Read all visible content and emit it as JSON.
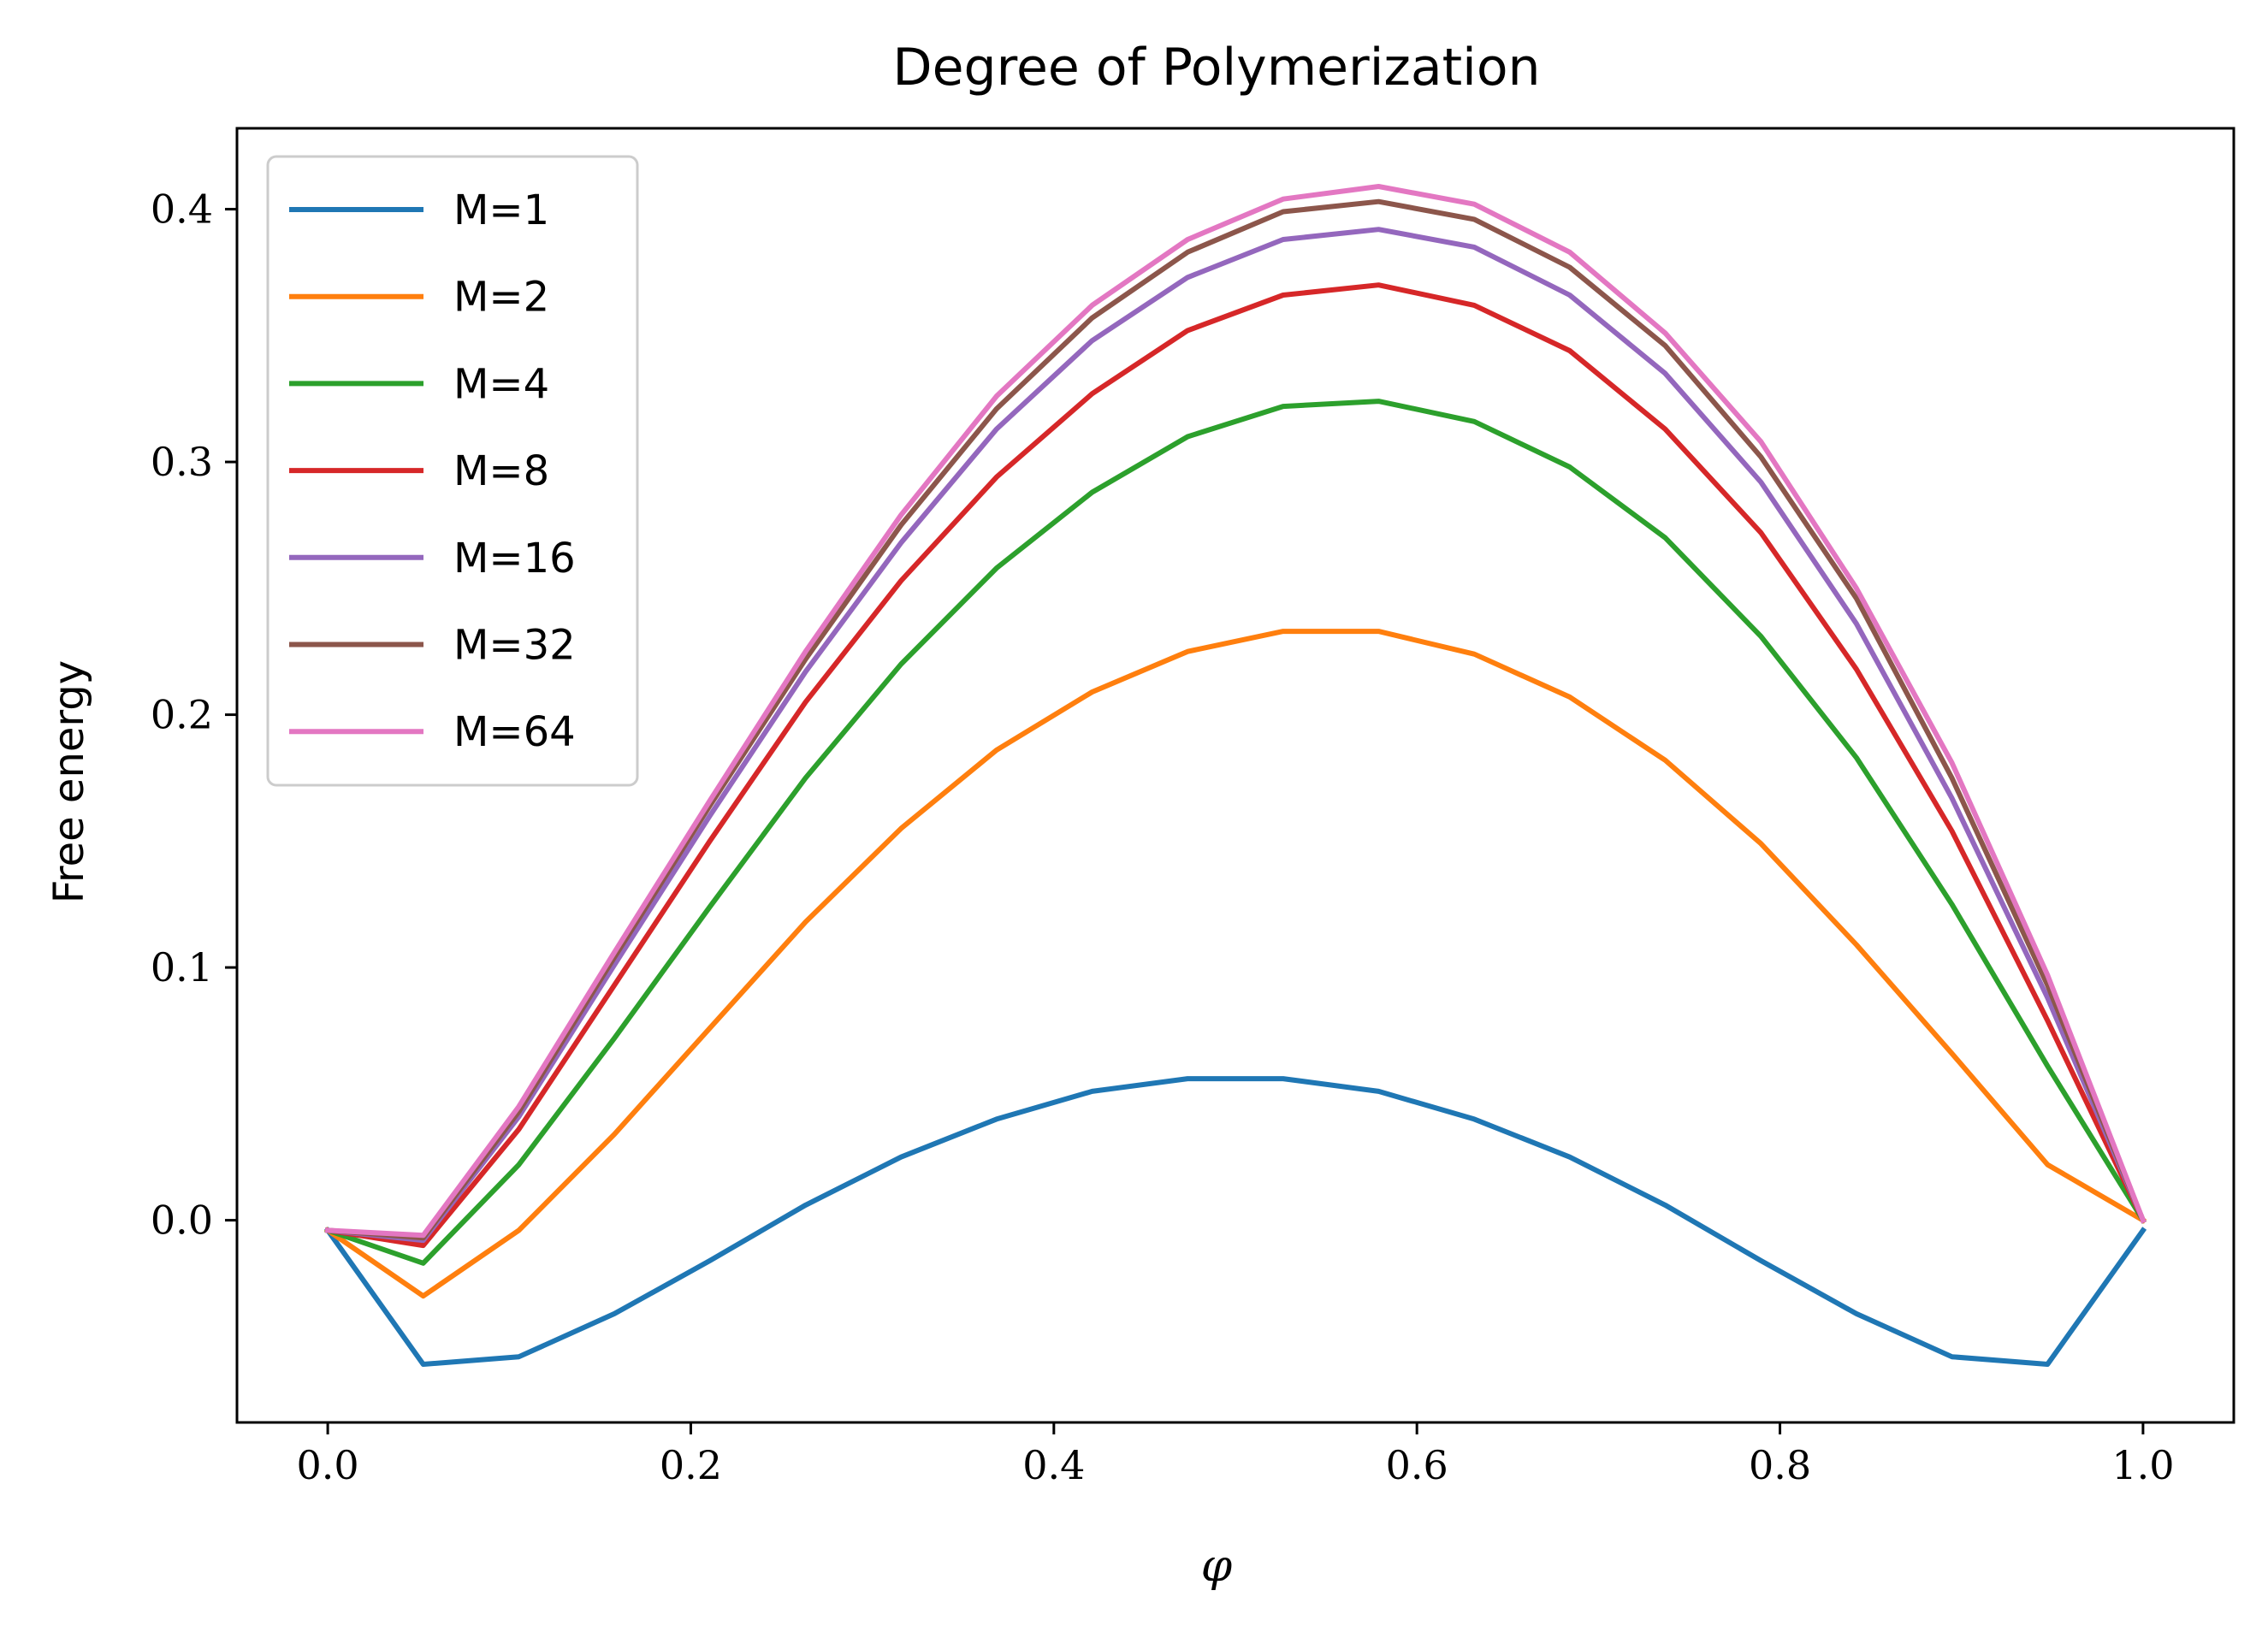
{
  "chart_data": {
    "type": "line",
    "title": "Degree of Polymerization",
    "xlabel": "φ",
    "ylabel": "Free energy",
    "xlim": [
      -0.05,
      1.05
    ],
    "ylim": [
      -0.08,
      0.432
    ],
    "xticks": [
      0.0,
      0.2,
      0.4,
      0.6,
      0.8,
      1.0
    ],
    "xtick_labels": [
      "0.0",
      "0.2",
      "0.4",
      "0.6",
      "0.8",
      "1.0"
    ],
    "yticks": [
      0.0,
      0.1,
      0.2,
      0.3,
      0.4
    ],
    "ytick_labels": [
      "0.0",
      "0.1",
      "0.2",
      "0.3",
      "0.4"
    ],
    "grid": false,
    "legend_position": "top-left",
    "x": [
      0.0,
      0.0526,
      0.1053,
      0.1579,
      0.2105,
      0.2632,
      0.3158,
      0.3684,
      0.4211,
      0.4737,
      0.5263,
      0.5789,
      0.6316,
      0.6842,
      0.7368,
      0.7895,
      0.8421,
      0.8947,
      0.9474,
      1.0
    ],
    "series": [
      {
        "name": "M=1",
        "color": "#1f77b4",
        "values": [
          -0.004,
          -0.057,
          -0.054,
          -0.037,
          -0.016,
          0.006,
          0.025,
          0.04,
          0.051,
          0.056,
          0.056,
          0.051,
          0.04,
          0.025,
          0.006,
          -0.016,
          -0.037,
          -0.054,
          -0.057,
          -0.004
        ]
      },
      {
        "name": "M=2",
        "color": "#ff7f0e",
        "values": [
          -0.004,
          -0.03,
          -0.004,
          0.034,
          0.076,
          0.118,
          0.155,
          0.186,
          0.209,
          0.225,
          0.233,
          0.233,
          0.224,
          0.207,
          0.182,
          0.149,
          0.109,
          0.066,
          0.022,
          0.0
        ]
      },
      {
        "name": "M=4",
        "color": "#2ca02c",
        "values": [
          -0.004,
          -0.017,
          0.022,
          0.072,
          0.124,
          0.175,
          0.22,
          0.258,
          0.288,
          0.31,
          0.322,
          0.324,
          0.316,
          0.298,
          0.27,
          0.231,
          0.183,
          0.125,
          0.061,
          0.0
        ]
      },
      {
        "name": "M=8",
        "color": "#d62728",
        "values": [
          -0.004,
          -0.01,
          0.036,
          0.093,
          0.15,
          0.205,
          0.253,
          0.294,
          0.327,
          0.352,
          0.366,
          0.37,
          0.362,
          0.344,
          0.313,
          0.272,
          0.218,
          0.154,
          0.079,
          0.0
        ]
      },
      {
        "name": "M=16",
        "color": "#9467bd",
        "values": [
          -0.004,
          -0.008,
          0.041,
          0.101,
          0.16,
          0.217,
          0.268,
          0.313,
          0.348,
          0.373,
          0.388,
          0.392,
          0.385,
          0.366,
          0.335,
          0.292,
          0.236,
          0.167,
          0.088,
          0.0
        ]
      },
      {
        "name": "M=32",
        "color": "#8c564b",
        "values": [
          -0.004,
          -0.007,
          0.043,
          0.104,
          0.164,
          0.222,
          0.275,
          0.321,
          0.357,
          0.383,
          0.399,
          0.403,
          0.396,
          0.377,
          0.346,
          0.302,
          0.246,
          0.175,
          0.093,
          0.0
        ]
      },
      {
        "name": "M=64",
        "color": "#e377c2",
        "values": [
          -0.004,
          -0.006,
          0.045,
          0.106,
          0.166,
          0.225,
          0.279,
          0.326,
          0.362,
          0.388,
          0.404,
          0.409,
          0.402,
          0.383,
          0.351,
          0.308,
          0.25,
          0.181,
          0.097,
          0.0
        ]
      }
    ]
  }
}
